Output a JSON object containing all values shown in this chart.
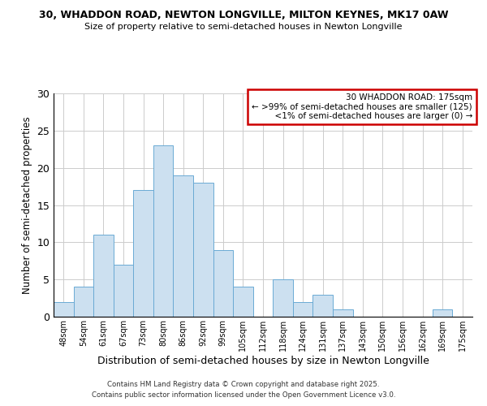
{
  "title_line1": "30, WHADDON ROAD, NEWTON LONGVILLE, MILTON KEYNES, MK17 0AW",
  "title_line2": "Size of property relative to semi-detached houses in Newton Longville",
  "xlabel": "Distribution of semi-detached houses by size in Newton Longville",
  "ylabel": "Number of semi-detached properties",
  "bin_labels": [
    "48sqm",
    "54sqm",
    "61sqm",
    "67sqm",
    "73sqm",
    "80sqm",
    "86sqm",
    "92sqm",
    "99sqm",
    "105sqm",
    "112sqm",
    "118sqm",
    "124sqm",
    "131sqm",
    "137sqm",
    "143sqm",
    "150sqm",
    "156sqm",
    "162sqm",
    "169sqm",
    "175sqm"
  ],
  "bar_values": [
    2,
    4,
    11,
    7,
    17,
    23,
    19,
    18,
    9,
    4,
    0,
    5,
    2,
    3,
    1,
    0,
    0,
    0,
    0,
    1,
    0
  ],
  "bar_color": "#cce0f0",
  "bar_edge_color": "#6aaad4",
  "ylim": [
    0,
    30
  ],
  "yticks": [
    0,
    5,
    10,
    15,
    20,
    25,
    30
  ],
  "grid_color": "#cccccc",
  "annotation_box_edge_color": "#cc0000",
  "annotation_title": "30 WHADDON ROAD: 175sqm",
  "annotation_line2": "← >99% of semi-detached houses are smaller (125)",
  "annotation_line3": "  <1% of semi-detached houses are larger (0) →",
  "footer_line1": "Contains HM Land Registry data © Crown copyright and database right 2025.",
  "footer_line2": "Contains public sector information licensed under the Open Government Licence v3.0.",
  "background_color": "#ffffff"
}
